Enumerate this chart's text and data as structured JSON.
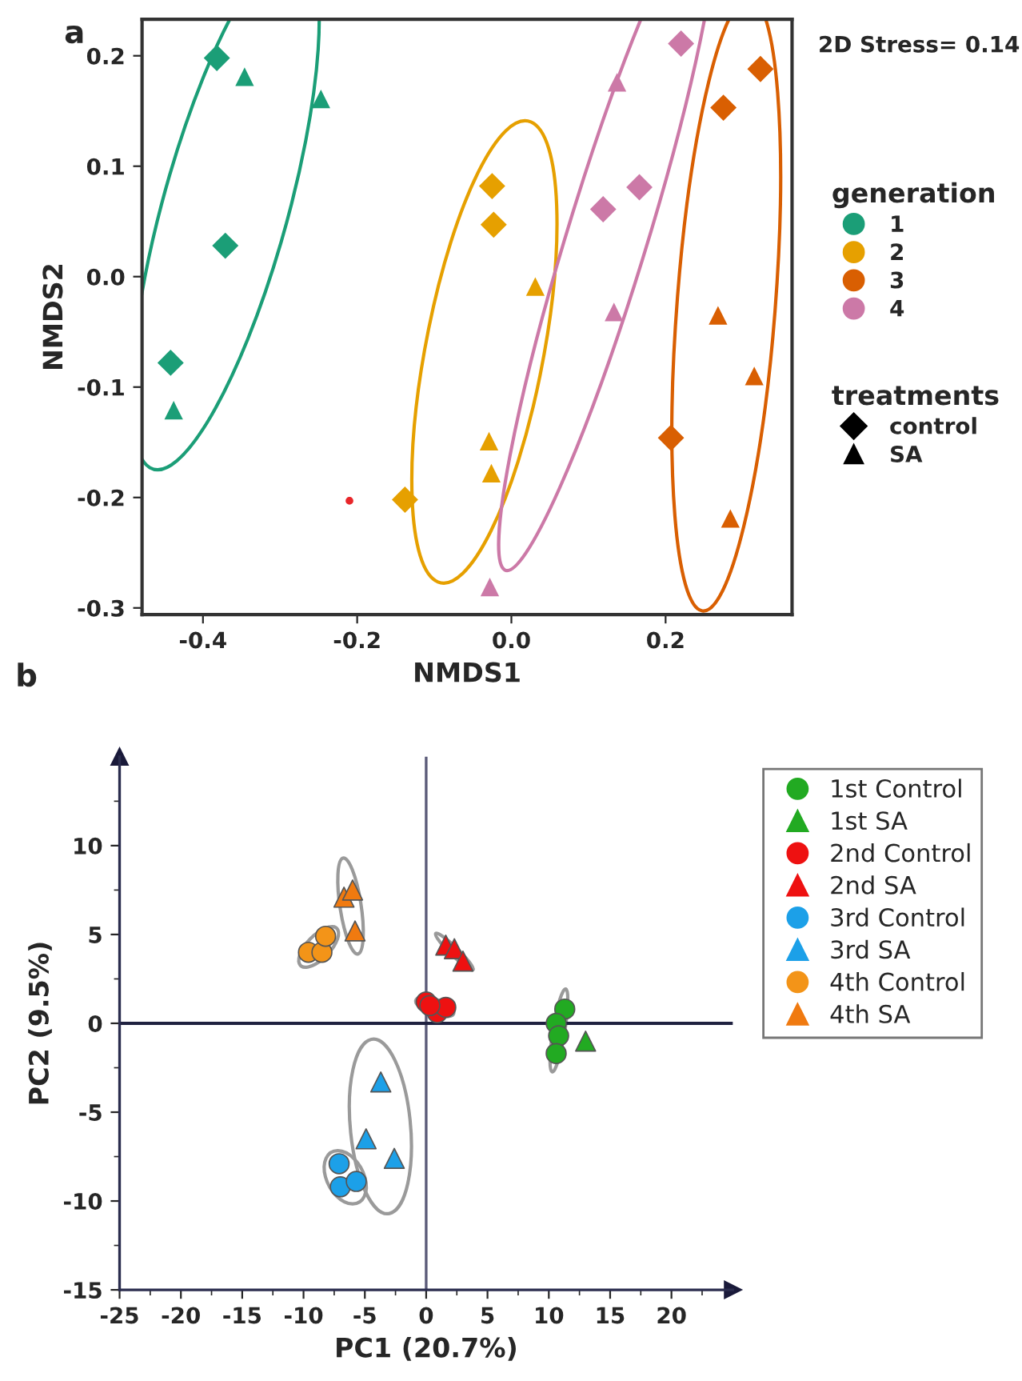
{
  "chart_data": [
    {
      "type": "scatter",
      "title": "a",
      "xlabel": "NMDS1",
      "ylabel": "NMDS2",
      "legend_title": "generation",
      "legend": "right",
      "grid": false,
      "xlim": [
        -0.479,
        0.364
      ],
      "ylim": [
        -0.306,
        0.233
      ],
      "xticks": [
        -0.4,
        -0.2,
        {
          "value": 0,
          "label": "0.0"
        },
        0.2
      ],
      "yticks": [
        -0.3,
        -0.2,
        -0.1,
        {
          "value": 0,
          "label": "0.0"
        },
        0.1,
        0.2
      ],
      "annotations": [
        "2D Stress= 0.14",
        "treatments",
        "control",
        "SA"
      ],
      "series": [
        {
          "name": "1",
          "color": "#1b9e77",
          "marker": "diamond",
          "x": [
            -0.382,
            -0.371,
            -0.442
          ],
          "values": [
            0.198,
            0.028,
            -0.078
          ]
        },
        {
          "name": "2",
          "color": "#e6a000",
          "marker": "diamond",
          "x": [
            -0.025,
            -0.023,
            -0.138
          ],
          "values": [
            0.082,
            0.047,
            -0.202
          ]
        },
        {
          "name": "3",
          "color": "#d95f02",
          "marker": "diamond",
          "x": [
            0.323,
            0.275,
            0.207
          ],
          "values": [
            0.188,
            0.153,
            -0.146
          ]
        },
        {
          "name": "4",
          "color": "#cc79a7",
          "marker": "diamond",
          "x": [
            0.22,
            0.166,
            0.119
          ],
          "values": [
            0.211,
            0.081,
            0.061
          ]
        },
        {
          "color": "#1b9e77",
          "marker": "triangle",
          "x": [
            -0.346,
            -0.247,
            -0.438
          ],
          "values": [
            0.181,
            0.161,
            -0.121
          ]
        },
        {
          "color": "#e6a000",
          "marker": "triangle",
          "x": [
            -0.029,
            -0.026,
            0.031
          ],
          "values": [
            -0.149,
            -0.178,
            -0.009
          ]
        },
        {
          "color": "#d95f02",
          "marker": "triangle",
          "x": [
            0.268,
            0.315,
            0.284
          ],
          "values": [
            -0.035,
            -0.09,
            -0.219
          ]
        },
        {
          "color": "#cc79a7",
          "marker": "triangle",
          "x": [
            0.137,
            0.133,
            -0.028
          ],
          "values": [
            0.176,
            -0.032,
            -0.281
          ]
        },
        {
          "color": "#e8262a",
          "marker": "circle",
          "x": [
            -0.21
          ],
          "values": [
            -0.203
          ]
        }
      ]
    },
    {
      "type": "scatter",
      "title": "b",
      "xlabel": "PC1 (20.7%)",
      "ylabel": "PC2 (9.5%)",
      "legend": "right",
      "grid": false,
      "xlim": [
        -25,
        25
      ],
      "ylim": [
        -15,
        15
      ],
      "xticks": [
        -25,
        {
          "value": -22.5,
          "label": null
        },
        -20,
        {
          "value": -17.5,
          "label": null
        },
        -15,
        {
          "value": -12.5,
          "label": null
        },
        -10,
        {
          "value": -7.5,
          "label": null
        },
        -5,
        {
          "value": -2.5,
          "label": null
        },
        0,
        {
          "value": 2.5,
          "label": null
        },
        5,
        {
          "value": 7.5,
          "label": null
        },
        10,
        {
          "value": 12.5,
          "label": null
        },
        15,
        {
          "value": 17.5,
          "label": null
        },
        20,
        {
          "value": 22.5,
          "label": null
        }
      ],
      "yticks": [
        -15,
        {
          "value": -12.5,
          "label": null
        },
        -10,
        {
          "value": -7.5,
          "label": null
        },
        -5,
        {
          "value": -2.5,
          "label": null
        },
        0,
        {
          "value": 2.5,
          "label": null
        },
        5,
        {
          "value": 7.5,
          "label": null
        },
        10,
        {
          "value": 12.5,
          "label": null
        }
      ],
      "ref_lines": [
        {
          "axis": "x",
          "value": 0,
          "color": "#5a5a78"
        },
        {
          "axis": "y",
          "value": 0,
          "color": "#1f2140"
        }
      ],
      "series": [
        {
          "name": "1st Control",
          "color": "#22aa22",
          "marker": "circle",
          "x": [
            11.3,
            10.6,
            10.8,
            10.6
          ],
          "values": [
            0.8,
            0.0,
            -0.7,
            -1.7
          ]
        },
        {
          "name": "1st SA",
          "color": "#22aa22",
          "marker": "triangle",
          "x": [
            13.0
          ],
          "values": [
            -1.0
          ]
        },
        {
          "name": "2nd Control",
          "color": "#ee1111",
          "marker": "circle",
          "x": [
            0.0,
            0.9,
            1.6,
            0.3
          ],
          "values": [
            1.2,
            0.6,
            0.9,
            1.0
          ]
        },
        {
          "name": "2nd SA",
          "color": "#ee1111",
          "marker": "triangle",
          "x": [
            1.6,
            2.3,
            3.0
          ],
          "values": [
            4.4,
            4.2,
            3.5
          ]
        },
        {
          "name": "3rd Control",
          "color": "#1ca0e8",
          "marker": "circle",
          "x": [
            -7.1,
            -7.0,
            -5.7
          ],
          "values": [
            -7.9,
            -9.2,
            -8.9
          ]
        },
        {
          "name": "3rd SA",
          "color": "#1ca0e8",
          "marker": "triangle",
          "x": [
            -3.7,
            -4.9,
            -2.6
          ],
          "values": [
            -3.3,
            -6.5,
            -7.6
          ]
        },
        {
          "name": "4th Control",
          "color": "#f39418",
          "marker": "circle",
          "x": [
            -9.6,
            -8.5,
            -8.2
          ],
          "values": [
            4.0,
            4.0,
            4.9
          ]
        },
        {
          "name": "4th SA",
          "color": "#f07a10",
          "marker": "triangle",
          "x": [
            -6.7,
            -6.0,
            -5.8
          ],
          "values": [
            7.1,
            7.5,
            5.2
          ]
        }
      ]
    }
  ]
}
